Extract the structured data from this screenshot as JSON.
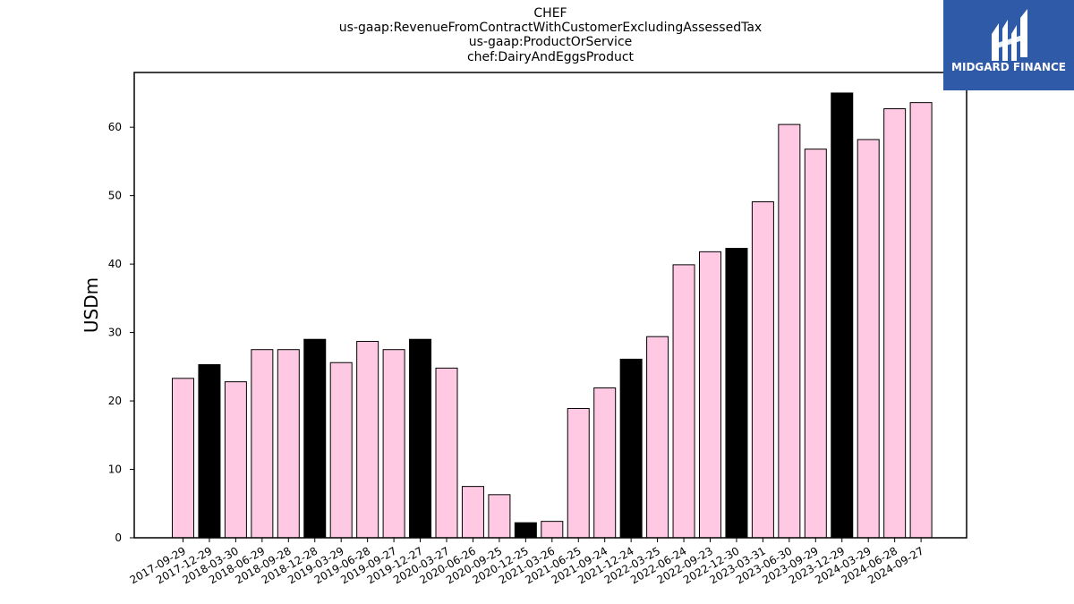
{
  "title_lines": [
    "CHEF",
    "us-gaap:RevenueFromContractWithCustomerExcludingAssessedTax",
    "us-gaap:ProductOrService",
    "chef:DairyAndEggsProduct"
  ],
  "logo": {
    "text": "MIDGARD FINANCE",
    "background": "#2f5aa8"
  },
  "colors": {
    "regular": "#ffc9e3",
    "highlight": "#000000",
    "edge": "#000000"
  },
  "chart_data": {
    "type": "bar",
    "title": "CHEF us-gaap:RevenueFromContractWithCustomerExcludingAssessedTax us-gaap:ProductOrService chef:DairyAndEggsProduct",
    "xlabel": "",
    "ylabel": "USDm",
    "ylim": [
      0,
      68
    ],
    "yticks": [
      0,
      10,
      20,
      30,
      40,
      50,
      60
    ],
    "grid": false,
    "categories": [
      "2017-09-29",
      "2017-12-29",
      "2018-03-30",
      "2018-06-29",
      "2018-09-28",
      "2018-12-28",
      "2019-03-29",
      "2019-06-28",
      "2019-09-27",
      "2019-12-27",
      "2020-03-27",
      "2020-06-26",
      "2020-09-25",
      "2020-12-25",
      "2021-03-26",
      "2021-06-25",
      "2021-09-24",
      "2021-12-24",
      "2022-03-25",
      "2022-06-24",
      "2022-09-23",
      "2022-12-30",
      "2023-03-31",
      "2023-06-30",
      "2023-09-29",
      "2023-12-29",
      "2024-03-29",
      "2024-06-28",
      "2024-09-27"
    ],
    "values": [
      23.3,
      25.3,
      22.8,
      27.5,
      27.5,
      29.0,
      25.6,
      28.7,
      27.5,
      29.0,
      24.8,
      7.5,
      6.3,
      2.2,
      2.4,
      18.9,
      21.9,
      26.1,
      29.4,
      39.9,
      41.8,
      42.3,
      49.1,
      60.4,
      56.8,
      65.0,
      58.2,
      62.7,
      63.6
    ],
    "highlighted": [
      false,
      true,
      false,
      false,
      false,
      true,
      false,
      false,
      false,
      true,
      false,
      false,
      false,
      true,
      false,
      false,
      false,
      true,
      false,
      false,
      false,
      true,
      false,
      false,
      false,
      true,
      false,
      false,
      false
    ]
  }
}
